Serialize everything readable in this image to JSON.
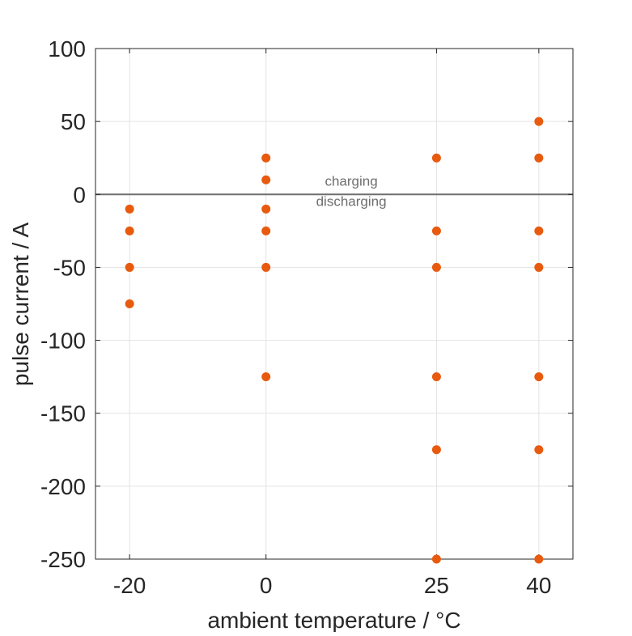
{
  "chart_data": {
    "type": "scatter",
    "xlabel": "ambient temperature / °C",
    "ylabel": "pulse current / A",
    "xticks": [
      -20,
      0,
      25,
      40
    ],
    "yticks": [
      100,
      50,
      0,
      -50,
      -100,
      -150,
      -200,
      -250
    ],
    "xlim": [
      -25,
      45
    ],
    "ylim": [
      -250,
      100
    ],
    "grid": true,
    "reference_line": {
      "y": 0,
      "color": "#6e6e6e"
    },
    "annotations": [
      {
        "text": "charging",
        "x": 12.5,
        "y": 6
      },
      {
        "text": "discharging",
        "x": 12.5,
        "y": -8
      }
    ],
    "series": [
      {
        "color": "#e85b0f",
        "points": [
          {
            "x": -20,
            "y": -10
          },
          {
            "x": -20,
            "y": -25
          },
          {
            "x": -20,
            "y": -50
          },
          {
            "x": -20,
            "y": -75
          },
          {
            "x": 0,
            "y": 25
          },
          {
            "x": 0,
            "y": 10
          },
          {
            "x": 0,
            "y": -10
          },
          {
            "x": 0,
            "y": -25
          },
          {
            "x": 0,
            "y": -50
          },
          {
            "x": 0,
            "y": -125
          },
          {
            "x": 25,
            "y": 25
          },
          {
            "x": 25,
            "y": -25
          },
          {
            "x": 25,
            "y": -50
          },
          {
            "x": 25,
            "y": -125
          },
          {
            "x": 25,
            "y": -175
          },
          {
            "x": 25,
            "y": -250
          },
          {
            "x": 40,
            "y": 50
          },
          {
            "x": 40,
            "y": 25
          },
          {
            "x": 40,
            "y": -25
          },
          {
            "x": 40,
            "y": -50
          },
          {
            "x": 40,
            "y": -125
          },
          {
            "x": 40,
            "y": -175
          },
          {
            "x": 40,
            "y": -250
          }
        ]
      }
    ]
  }
}
